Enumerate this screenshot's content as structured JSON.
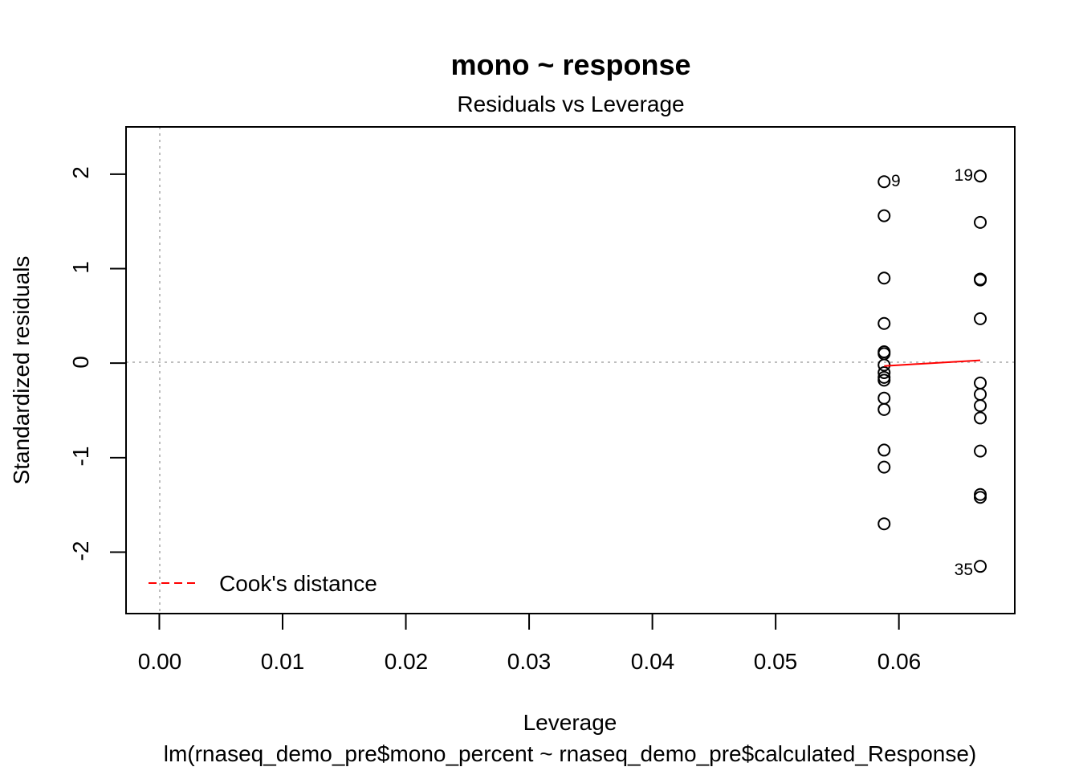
{
  "chart_data": {
    "type": "scatter",
    "title": "mono ~ response",
    "subtitle": "Residuals vs Leverage",
    "xlabel": "Leverage",
    "sub_xlabel": "lm(rnaseq_demo_pre$mono_percent ~ rnaseq_demo_pre$calculated_Response)",
    "ylabel": "Standardized residuals",
    "xlim": [
      -0.0027,
      0.0694
    ],
    "ylim": [
      -2.65,
      2.5
    ],
    "xticks": [
      0.0,
      0.01,
      0.02,
      0.03,
      0.04,
      0.05,
      0.06
    ],
    "xtick_labels": [
      "0.00",
      "0.01",
      "0.02",
      "0.03",
      "0.04",
      "0.05",
      "0.06"
    ],
    "yticks": [
      -2,
      -1,
      0,
      1,
      2
    ],
    "ytick_labels": [
      "-2",
      "-1",
      "0",
      "1",
      "2"
    ],
    "grid": false,
    "reference_lines": {
      "horizontal": 0,
      "vertical": 0,
      "style": "dotted",
      "color": "#bebebe"
    },
    "points": [
      {
        "x": 0.0588,
        "y": 1.92,
        "label": "9"
      },
      {
        "x": 0.0588,
        "y": 1.56
      },
      {
        "x": 0.0588,
        "y": 0.9
      },
      {
        "x": 0.0588,
        "y": 0.42
      },
      {
        "x": 0.0588,
        "y": 0.12
      },
      {
        "x": 0.0588,
        "y": 0.1
      },
      {
        "x": 0.0588,
        "y": -0.02
      },
      {
        "x": 0.0588,
        "y": -0.1
      },
      {
        "x": 0.0588,
        "y": -0.15
      },
      {
        "x": 0.0588,
        "y": -0.18
      },
      {
        "x": 0.0588,
        "y": -0.37
      },
      {
        "x": 0.0588,
        "y": -0.49
      },
      {
        "x": 0.0588,
        "y": -0.92
      },
      {
        "x": 0.0588,
        "y": -1.1
      },
      {
        "x": 0.0588,
        "y": -1.7
      },
      {
        "x": 0.0666,
        "y": 1.98,
        "label": "19"
      },
      {
        "x": 0.0666,
        "y": 1.49
      },
      {
        "x": 0.0666,
        "y": 0.89
      },
      {
        "x": 0.0666,
        "y": 0.88
      },
      {
        "x": 0.0666,
        "y": 0.47
      },
      {
        "x": 0.0666,
        "y": -0.21
      },
      {
        "x": 0.0666,
        "y": -0.33
      },
      {
        "x": 0.0666,
        "y": -0.45
      },
      {
        "x": 0.0666,
        "y": -0.58
      },
      {
        "x": 0.0666,
        "y": -0.93
      },
      {
        "x": 0.0666,
        "y": -1.39
      },
      {
        "x": 0.0666,
        "y": -1.42
      },
      {
        "x": 0.0666,
        "y": -2.15,
        "label": "35"
      }
    ],
    "smooth_line": {
      "x": [
        0.0588,
        0.0666
      ],
      "y": [
        -0.03,
        0.03
      ],
      "color": "#ff0000"
    },
    "legend": {
      "label": "Cook's distance",
      "position": "bottom-left",
      "line_style": "dashed",
      "color": "#ff0000"
    }
  }
}
